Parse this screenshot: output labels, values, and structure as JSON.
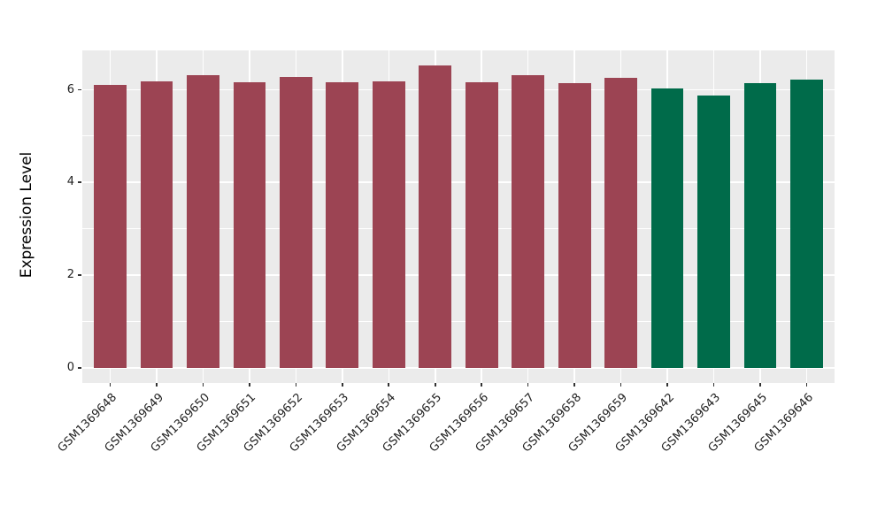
{
  "chart_data": {
    "type": "bar",
    "title": "",
    "xlabel": "",
    "ylabel": "Expression Level",
    "categories": [
      "GSM1369648",
      "GSM1369649",
      "GSM1369650",
      "GSM1369651",
      "GSM1369652",
      "GSM1369653",
      "GSM1369654",
      "GSM1369655",
      "GSM1369656",
      "GSM1369657",
      "GSM1369658",
      "GSM1369659",
      "GSM1369642",
      "GSM1369643",
      "GSM1369645",
      "GSM1369646"
    ],
    "values": [
      6.1,
      6.18,
      6.32,
      6.16,
      6.27,
      6.16,
      6.18,
      6.52,
      6.16,
      6.32,
      6.14,
      6.25,
      6.02,
      5.87,
      6.15,
      6.22
    ],
    "bar_colors": [
      "#9C4453",
      "#9C4453",
      "#9C4453",
      "#9C4453",
      "#9C4453",
      "#9C4453",
      "#9C4453",
      "#9C4453",
      "#9C4453",
      "#9C4453",
      "#9C4453",
      "#9C4453",
      "#006B4A",
      "#006B4A",
      "#006B4A",
      "#006B4A"
    ],
    "groups": [
      {
        "color": "#9C4453",
        "count": 12
      },
      {
        "color": "#006B4A",
        "count": 4
      }
    ],
    "ylim": [
      -0.33,
      6.85
    ],
    "yticks": [
      0,
      2,
      4,
      6
    ],
    "ytick_labels": [
      "0",
      "2",
      "4",
      "6"
    ],
    "yminor_ticks": [
      1,
      3,
      5
    ],
    "grid": true,
    "legend": "none",
    "panel_background": "#EBEBEB",
    "grid_color": "#FFFFFF",
    "bar_width_ratio": 0.7
  }
}
